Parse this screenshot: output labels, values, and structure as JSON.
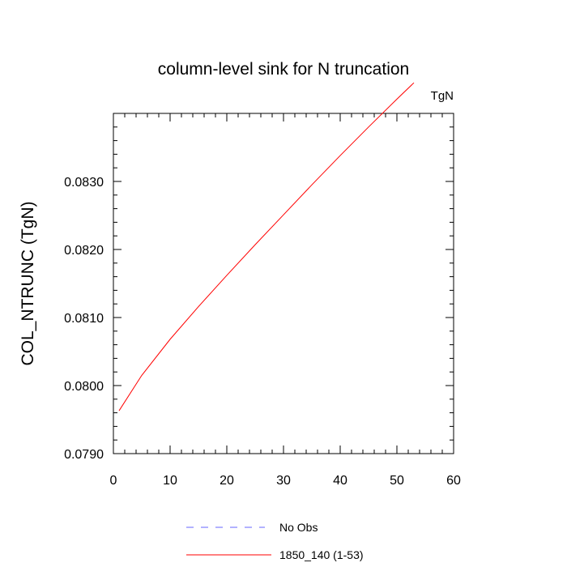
{
  "chart_data": {
    "type": "line",
    "title": "column-level sink for N truncation",
    "units_label": "TgN",
    "xlabel": "",
    "ylabel": "COL_NTRUNC  (TgN)",
    "xlim": [
      0,
      60
    ],
    "ylim": [
      0.079,
      0.084
    ],
    "x_ticks": [
      0,
      10,
      20,
      30,
      40,
      50,
      60
    ],
    "x_tick_labels": [
      "0",
      "10",
      "20",
      "30",
      "40",
      "50",
      "60"
    ],
    "y_ticks": [
      0.079,
      0.08,
      0.081,
      0.082,
      0.083
    ],
    "y_tick_labels": [
      "0.0790",
      "0.0800",
      "0.0810",
      "0.0820",
      "0.0830"
    ],
    "grid": false,
    "legend_position": "bottom",
    "series": [
      {
        "name": "1850_140 (1-53)",
        "color": "#ff0000",
        "style": "solid",
        "x": [
          1,
          5,
          10,
          15,
          20,
          25,
          30,
          35,
          40,
          45,
          50,
          53
        ],
        "y": [
          0.07963,
          0.08015,
          0.08068,
          0.08116,
          0.08162,
          0.08207,
          0.08251,
          0.08295,
          0.08338,
          0.0838,
          0.08421,
          0.08445
        ]
      },
      {
        "name": "No Obs",
        "color": "#6666ff",
        "style": "dashed",
        "x": [],
        "y": []
      }
    ]
  }
}
